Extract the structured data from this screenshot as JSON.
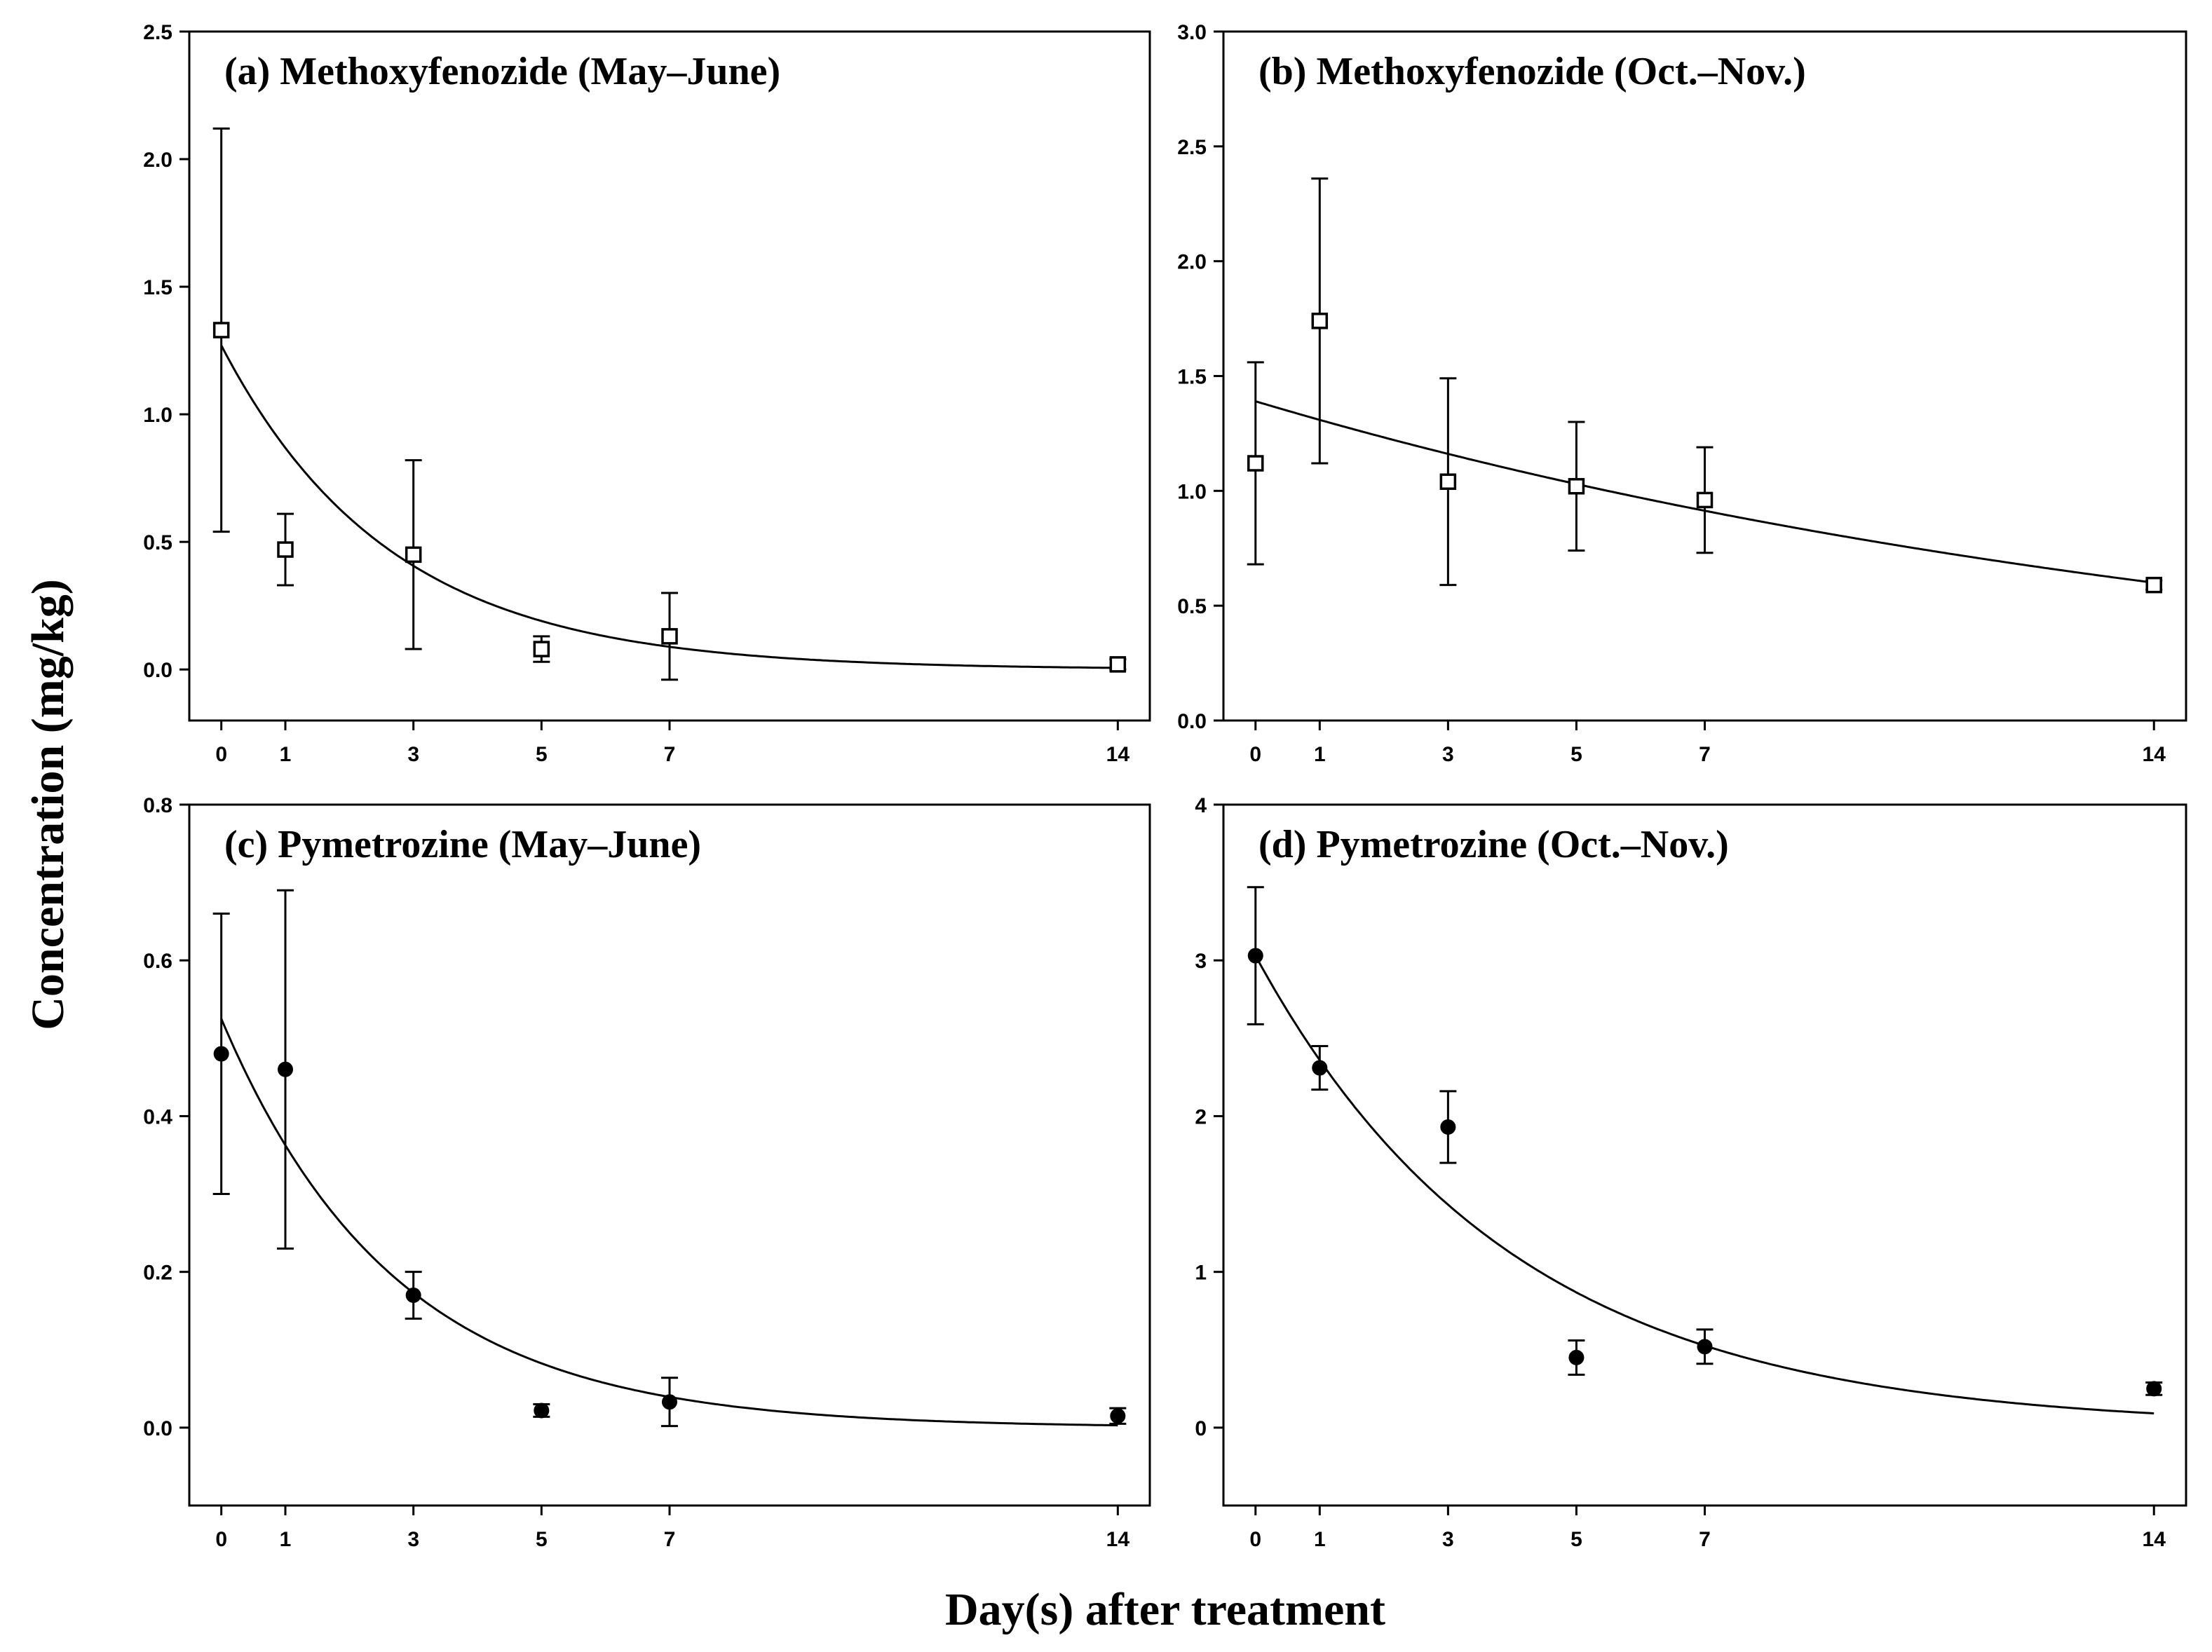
{
  "figure": {
    "xlabel": "Day(s) after treatment",
    "ylabel": "Concentration (mg/kg)"
  },
  "chart_data": [
    {
      "type": "scatter",
      "title": "(a) Methoxyfenozide (May–June)",
      "marker": "open-square",
      "x": [
        0,
        1,
        3,
        5,
        7,
        14
      ],
      "y": [
        1.33,
        0.47,
        0.45,
        0.08,
        0.13,
        0.02
      ],
      "error": [
        0.79,
        0.14,
        0.37,
        0.05,
        0.17,
        0.02
      ],
      "fit": {
        "model": "exponential",
        "c0": 1.27,
        "k": 0.38
      },
      "xticks": [
        0,
        1,
        3,
        5,
        7,
        14
      ],
      "xtick_labels": [
        "0",
        "1",
        "3",
        "5",
        "7",
        "14"
      ],
      "xlim": [
        -0.5,
        14.5
      ],
      "yticks": [
        0,
        0.5,
        1.0,
        1.5,
        2.0,
        2.5
      ],
      "ytick_labels": [
        "0.0",
        "0.5",
        "1.0",
        "1.5",
        "2.0",
        "2.5"
      ],
      "ylim": [
        -0.2,
        2.5
      ],
      "xlabel": "Day(s) after treatment",
      "ylabel": "Concentration (mg/kg)"
    },
    {
      "type": "scatter",
      "title": "(b) Methoxyfenozide (Oct.–Nov.)",
      "marker": "open-square",
      "x": [
        0,
        1,
        3,
        5,
        7,
        14
      ],
      "y": [
        1.12,
        1.74,
        1.04,
        1.02,
        0.96,
        0.59
      ],
      "error": [
        0.44,
        0.62,
        0.45,
        0.28,
        0.23,
        0.02
      ],
      "fit": {
        "model": "exponential",
        "c0": 1.39,
        "k": 0.06
      },
      "xticks": [
        0,
        1,
        3,
        5,
        7,
        14
      ],
      "xtick_labels": [
        "0",
        "1",
        "3",
        "5",
        "7",
        "14"
      ],
      "xlim": [
        -0.5,
        14.5
      ],
      "yticks": [
        0,
        0.5,
        1.0,
        1.5,
        2.0,
        2.5,
        3.0
      ],
      "ytick_labels": [
        "0.0",
        "0.5",
        "1.0",
        "1.5",
        "2.0",
        "2.5",
        "3.0"
      ],
      "ylim": [
        0,
        3.0
      ],
      "xlabel": "Day(s) after treatment",
      "ylabel": "Concentration (mg/kg)"
    },
    {
      "type": "scatter",
      "title": "(c) Pymetrozine (May–June)",
      "marker": "filled-circle",
      "x": [
        0,
        1,
        3,
        5,
        7,
        14
      ],
      "y": [
        0.48,
        0.46,
        0.17,
        0.022,
        0.033,
        0.015
      ],
      "error": [
        0.18,
        0.23,
        0.03,
        0.008,
        0.031,
        0.01
      ],
      "fit": {
        "model": "exponential",
        "c0": 0.525,
        "k": 0.37
      },
      "xticks": [
        0,
        1,
        3,
        5,
        7,
        14
      ],
      "xtick_labels": [
        "0",
        "1",
        "3",
        "5",
        "7",
        "14"
      ],
      "xlim": [
        -0.5,
        14.5
      ],
      "yticks": [
        0,
        0.2,
        0.4,
        0.6,
        0.8
      ],
      "ytick_labels": [
        "0.0",
        "0.2",
        "0.4",
        "0.6",
        "0.8"
      ],
      "ylim": [
        -0.1,
        0.8
      ],
      "xlabel": "Day(s) after treatment",
      "ylabel": "Concentration (mg/kg)"
    },
    {
      "type": "scatter",
      "title": "(d) Pymetrozine (Oct.–Nov.)",
      "marker": "filled-circle",
      "x": [
        0,
        1,
        3,
        5,
        7,
        14
      ],
      "y": [
        3.03,
        2.31,
        1.93,
        0.45,
        0.52,
        0.25
      ],
      "error": [
        0.44,
        0.14,
        0.23,
        0.11,
        0.11,
        0.04
      ],
      "fit": {
        "model": "exponential",
        "c0": 3.03,
        "k": 0.25
      },
      "xticks": [
        0,
        1,
        3,
        5,
        7,
        14
      ],
      "xtick_labels": [
        "0",
        "1",
        "3",
        "5",
        "7",
        "14"
      ],
      "xlim": [
        -0.5,
        14.5
      ],
      "yticks": [
        0,
        1,
        2,
        3,
        4
      ],
      "ytick_labels": [
        "0",
        "1",
        "2",
        "3",
        "4"
      ],
      "ylim": [
        -0.5,
        4.0
      ],
      "xlabel": "Day(s) after treatment",
      "ylabel": "Concentration (mg/kg)"
    }
  ]
}
